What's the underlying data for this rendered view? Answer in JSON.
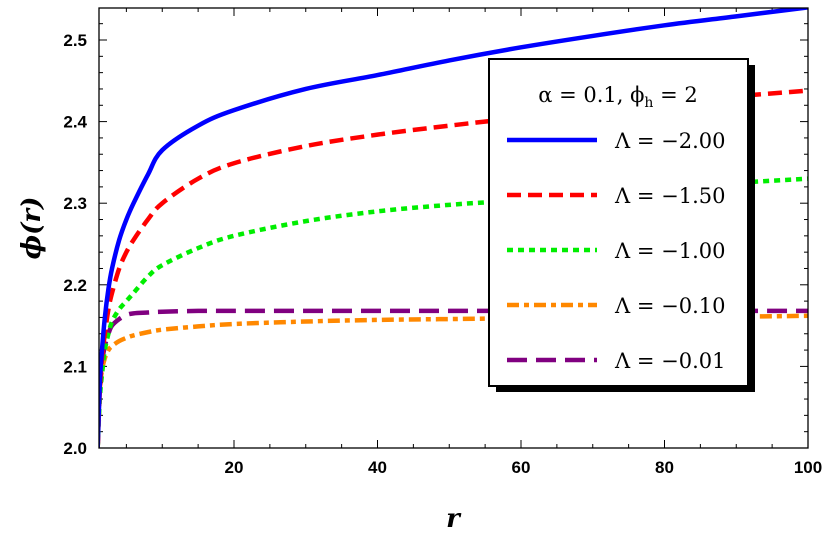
{
  "chart_data": {
    "type": "line",
    "title": "",
    "xlabel": "r",
    "ylabel": "ϕ(r)",
    "xlim": [
      1,
      100
    ],
    "ylim": [
      2.0,
      2.54
    ],
    "xticks": [
      "20",
      "40",
      "60",
      "80",
      "100"
    ],
    "yticks": [
      "2.0",
      "2.1",
      "2.2",
      "2.3",
      "2.4",
      "2.5"
    ],
    "legend_title": "α = 0.1,  ϕ_h = 2",
    "legend_title_parts": {
      "main": "α = 0.1,  ϕ",
      "sub": "h",
      "tail": " = 2"
    },
    "legend_position": "right",
    "x": [
      1,
      1.3,
      1.6,
      2,
      2.5,
      3,
      4,
      5,
      6,
      8,
      10,
      15,
      20,
      30,
      40,
      50,
      60,
      70,
      80,
      90,
      100
    ],
    "series": [
      {
        "name": "Λ = −2.00",
        "color": "#0000ff",
        "dash": "",
        "values": [
          2.0,
          2.08,
          2.12,
          2.16,
          2.195,
          2.22,
          2.255,
          2.28,
          2.3,
          2.335,
          2.365,
          2.395,
          2.414,
          2.44,
          2.457,
          2.475,
          2.491,
          2.505,
          2.518,
          2.529,
          2.54
        ]
      },
      {
        "name": "Λ = −1.50",
        "color": "#ff0000",
        "dash": "14 7",
        "values": [
          2.0,
          2.07,
          2.11,
          2.14,
          2.17,
          2.19,
          2.22,
          2.24,
          2.255,
          2.28,
          2.3,
          2.33,
          2.349,
          2.37,
          2.384,
          2.395,
          2.405,
          2.415,
          2.423,
          2.431,
          2.438
        ]
      },
      {
        "name": "Λ = −1.00",
        "color": "#00ee00",
        "dash": "6 5",
        "values": [
          2.0,
          2.06,
          2.09,
          2.12,
          2.14,
          2.155,
          2.17,
          2.18,
          2.19,
          2.21,
          2.224,
          2.245,
          2.26,
          2.278,
          2.29,
          2.298,
          2.304,
          2.312,
          2.319,
          2.325,
          2.33
        ]
      },
      {
        "name": "Λ = −0.10",
        "color": "#ff8800",
        "dash": "12 5 5 5",
        "values": [
          2.0,
          2.07,
          2.095,
          2.11,
          2.12,
          2.125,
          2.131,
          2.135,
          2.138,
          2.142,
          2.145,
          2.149,
          2.152,
          2.155,
          2.157,
          2.158,
          2.159,
          2.16,
          2.161,
          2.161,
          2.162
        ]
      },
      {
        "name": "Λ = −0.01",
        "color": "#800080",
        "dash": "20 9",
        "values": [
          2.0,
          2.08,
          2.105,
          2.125,
          2.14,
          2.15,
          2.158,
          2.163,
          2.165,
          2.166,
          2.167,
          2.168,
          2.168,
          2.168,
          2.168,
          2.168,
          2.168,
          2.168,
          2.168,
          2.168,
          2.168
        ]
      }
    ]
  }
}
